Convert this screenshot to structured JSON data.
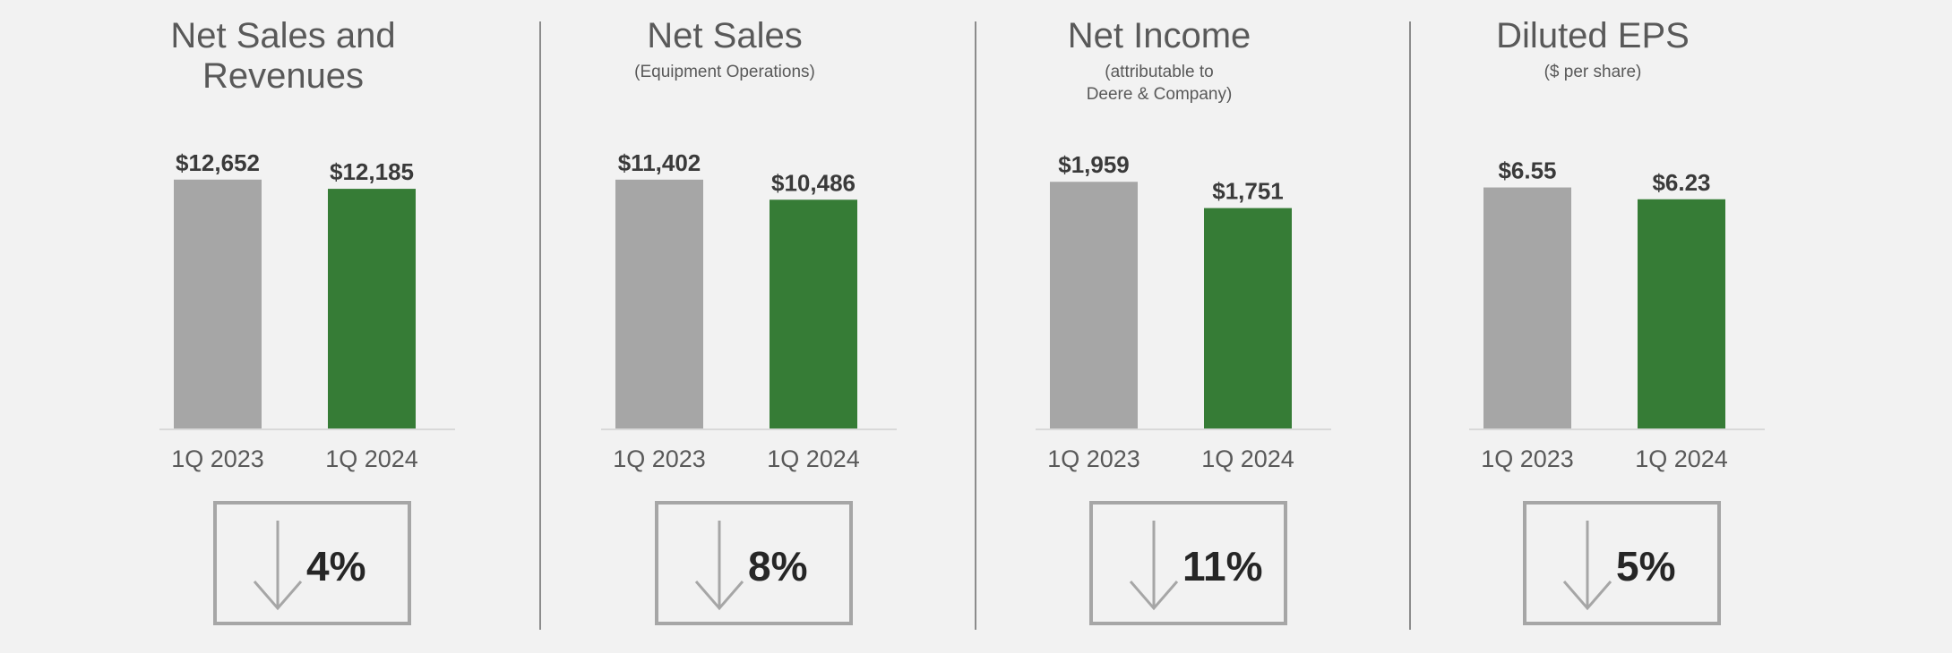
{
  "colors": {
    "prior_year": "#a6a6a6",
    "current_year": "#367c36",
    "axis": "#d9d9d9"
  },
  "chart_data": [
    {
      "type": "bar",
      "title": "Net Sales and Revenues",
      "subtitle": "",
      "categories": [
        "1Q 2023",
        "1Q 2024"
      ],
      "values": [
        12652,
        12185
      ],
      "value_labels": [
        "$12,652",
        "$12,185"
      ],
      "ylim": [
        0,
        14500
      ],
      "change": {
        "direction": "down",
        "label": "4%"
      }
    },
    {
      "type": "bar",
      "title": "Net Sales",
      "subtitle": "(Equipment Operations)",
      "categories": [
        "1Q 2023",
        "1Q 2024"
      ],
      "values": [
        11402,
        10486
      ],
      "value_labels": [
        "$11,402",
        "$10,486"
      ],
      "ylim": [
        0,
        13070
      ],
      "change": {
        "direction": "down",
        "label": "8%"
      }
    },
    {
      "type": "bar",
      "title": "Net Income",
      "subtitle": "(attributable to\nDeere & Company)",
      "categories": [
        "1Q 2023",
        "1Q 2024"
      ],
      "values": [
        1959,
        1751
      ],
      "value_labels": [
        "$1,959",
        "$1,751"
      ],
      "ylim": [
        0,
        2265
      ],
      "change": {
        "direction": "down",
        "label": "11%"
      }
    },
    {
      "type": "bar",
      "title": "Diluted EPS",
      "subtitle": "($ per share)",
      "categories": [
        "1Q 2023",
        "1Q 2024"
      ],
      "values": [
        6.55,
        6.23
      ],
      "value_labels": [
        "$6.55",
        "$6.23"
      ],
      "ylim": [
        0,
        7.75
      ],
      "change": {
        "direction": "down",
        "label": "5%"
      }
    }
  ]
}
